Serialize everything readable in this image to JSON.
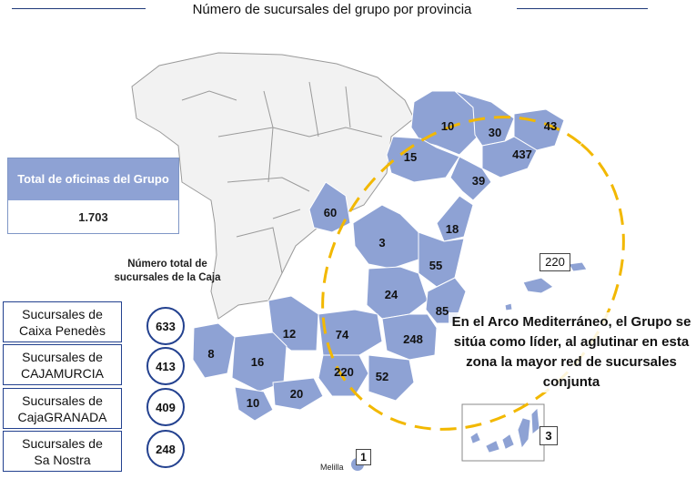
{
  "title": "Número de sucursales del grupo por provincia",
  "total": {
    "label": "Total de oficinas del Grupo",
    "value": "1.703"
  },
  "caption": "Número total de sucursales de la Caja",
  "banks": [
    {
      "name_line1": "Sucursales de",
      "name_line2": "Caixa Penedès",
      "value": "633"
    },
    {
      "name_line1": "Sucursales de",
      "name_line2": "CAJAMURCIA",
      "value": "413"
    },
    {
      "name_line1": "Sucursales de",
      "name_line2": "CajaGRANADA",
      "value": "409"
    },
    {
      "name_line1": "Sucursales de",
      "name_line2": "Sa Nostra",
      "value": "248"
    }
  ],
  "callout": "En el Arco Mediterráneo, el Grupo se sitúa como líder, al aglutinar en esta zona la mayor red de sucursales conjunta",
  "islands": {
    "baleares": "220",
    "canarias": "3",
    "melilla": "1",
    "melilla_name": "Melilla"
  },
  "provinces": [
    {
      "value": "10"
    },
    {
      "value": "30"
    },
    {
      "value": "43"
    },
    {
      "value": "15"
    },
    {
      "value": "437"
    },
    {
      "value": "39"
    },
    {
      "value": "60"
    },
    {
      "value": "18"
    },
    {
      "value": "3"
    },
    {
      "value": "55"
    },
    {
      "value": "24"
    },
    {
      "value": "85"
    },
    {
      "value": "12"
    },
    {
      "value": "74"
    },
    {
      "value": "248"
    },
    {
      "value": "8"
    },
    {
      "value": "16"
    },
    {
      "value": "220"
    },
    {
      "value": "52"
    },
    {
      "value": "10"
    },
    {
      "value": "20"
    }
  ],
  "colors": {
    "highlight": "#8ea2d4",
    "base": "#f2f2f2",
    "border": "#9a9a9a",
    "dash": "#f2b800",
    "frame": "#23418f"
  }
}
